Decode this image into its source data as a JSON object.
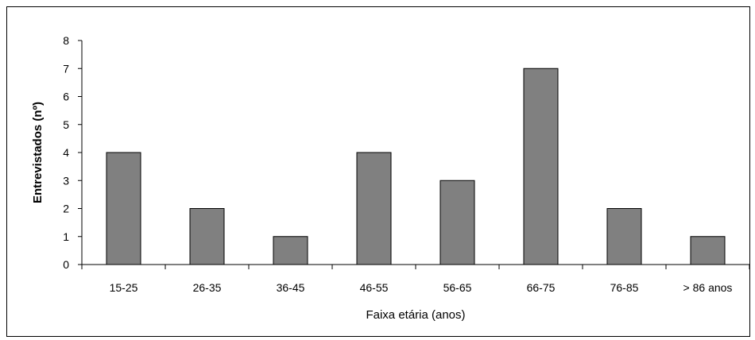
{
  "chart_data": {
    "type": "bar",
    "title": "",
    "xlabel": "Faixa etária (anos)",
    "ylabel": "Entrevistados (nº)",
    "categories": [
      "15-25",
      "26-35",
      "36-45",
      "46-55",
      "56-65",
      "66-75",
      "76-85",
      "> 86 anos"
    ],
    "values": [
      4,
      2,
      1,
      4,
      3,
      7,
      2,
      1
    ],
    "ylim": [
      0,
      8
    ],
    "yticks": [
      "0",
      "1",
      "2",
      "3",
      "4",
      "5",
      "6",
      "7",
      "8"
    ],
    "grid": false,
    "legend": "none",
    "bar_color": "#808080",
    "bar_edge_color": "#000000"
  }
}
